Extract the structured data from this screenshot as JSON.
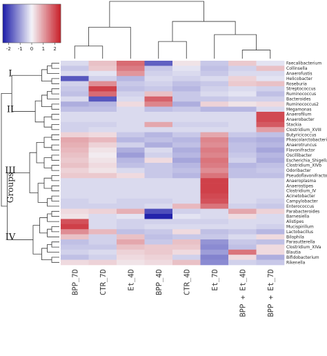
{
  "chart_data": {
    "type": "heatmap",
    "title": "",
    "groups_label": "Groups",
    "columns": [
      "BPP_7D",
      "CTR_7D",
      "Et_4D",
      "BPP_4D",
      "CTR_4D",
      "Et_7D",
      "BPP + Et_4D",
      "BPP + Et_7D"
    ],
    "rows": [
      "Faecalibacterium",
      "Collinsella",
      "Anaerofustis",
      "Helicobacter",
      "Roseburia",
      "Streptococcus",
      "Ruminococcus",
      "Bacteroides",
      "Ruminococcus2",
      "Megamonas",
      "Anaerofilum",
      "Anaerobacter",
      "Stackia",
      "Clostridium_XVIII",
      "Butyricicoccus",
      "Phascolarctobacterium",
      "Anaerotruncus",
      "Flavonifractor",
      "Oscillibacter",
      "Escherichia_Shigella",
      "Clostridium_XIVb",
      "Odoribacter",
      "Pseudoflavonifractor",
      "Anaeroplasma",
      "Anaerostipes",
      "Clostridium_IV",
      "Acinetobacter",
      "Campylobacter",
      "Enterococcus",
      "Parabacteroides",
      "Barnesiella",
      "Alistipes",
      "Mucispirillum",
      "Lactobacillus",
      "Bilophila",
      "Parasutterella",
      "Clostridium_XIVa",
      "Blautia",
      "Bifidobacterium",
      "Rikenella"
    ],
    "values": [
      [
        -0.3,
        0.6,
        1.6,
        -1.7,
        0.2,
        -0.5,
        0.5,
        -0.2
      ],
      [
        -0.5,
        0.5,
        1.4,
        -0.5,
        -0.2,
        -0.6,
        -0.4,
        0.6
      ],
      [
        -0.3,
        -0.2,
        1.1,
        -0.4,
        -0.3,
        -0.5,
        -0.3,
        -0.3
      ],
      [
        -1.8,
        -0.4,
        -0.7,
        -0.3,
        -0.4,
        -0.3,
        0.4,
        -0.2
      ],
      [
        -0.4,
        1.2,
        -0.5,
        -0.4,
        -0.6,
        -0.5,
        0.5,
        0.6
      ],
      [
        -0.5,
        2.1,
        -0.6,
        -0.5,
        -0.7,
        -0.4,
        -0.3,
        -0.4
      ],
      [
        -0.6,
        1.6,
        -0.4,
        0.6,
        -0.5,
        -0.3,
        -0.2,
        -0.6
      ],
      [
        -0.3,
        -1.8,
        -0.3,
        1.7,
        -0.5,
        -0.5,
        -0.4,
        -0.4
      ],
      [
        -0.8,
        -0.7,
        0.3,
        1.3,
        -0.8,
        0.4,
        0.2,
        0.3
      ],
      [
        -0.6,
        -0.6,
        -0.3,
        -0.6,
        -0.5,
        -0.7,
        -0.7,
        -0.3
      ],
      [
        -0.3,
        -0.3,
        -0.3,
        -0.3,
        -0.3,
        -0.3,
        -0.3,
        2.0
      ],
      [
        -0.3,
        -0.3,
        -0.3,
        -0.3,
        -0.3,
        -0.3,
        -0.3,
        2.0
      ],
      [
        -0.4,
        -0.4,
        -0.3,
        0.9,
        -0.4,
        -0.4,
        -0.3,
        1.8
      ],
      [
        -0.4,
        -0.3,
        -0.3,
        -0.3,
        -0.3,
        -0.3,
        -0.3,
        1.0
      ],
      [
        0.4,
        0.3,
        -0.5,
        -0.7,
        -0.5,
        0.9,
        -0.5,
        -0.6
      ],
      [
        0.9,
        0.7,
        -0.7,
        -0.6,
        -0.7,
        1.3,
        -0.7,
        -0.8
      ],
      [
        0.8,
        0.4,
        -0.4,
        -0.8,
        -0.6,
        1.2,
        -0.6,
        -0.7
      ],
      [
        0.7,
        0.2,
        -0.8,
        -0.3,
        -0.8,
        1.4,
        -0.6,
        -0.9
      ],
      [
        0.6,
        0.1,
        -1.0,
        -0.4,
        -0.7,
        1.3,
        -0.5,
        -0.7
      ],
      [
        0.5,
        0.2,
        -0.7,
        0.3,
        -0.9,
        1.5,
        -0.4,
        -0.8
      ],
      [
        0.6,
        0.3,
        -0.6,
        -0.5,
        -0.7,
        1.4,
        -0.7,
        -0.6
      ],
      [
        0.4,
        0.2,
        -0.3,
        -0.5,
        -0.6,
        1.2,
        -0.6,
        -0.5
      ],
      [
        0.5,
        0.5,
        0.3,
        -0.5,
        -0.7,
        1.5,
        -0.6,
        -0.6
      ],
      [
        -0.3,
        -0.3,
        -0.3,
        -0.3,
        -0.3,
        2.1,
        -0.3,
        -0.3
      ],
      [
        -0.3,
        -0.3,
        -0.3,
        -0.3,
        -0.3,
        2.1,
        -0.3,
        -0.3
      ],
      [
        -0.3,
        -0.3,
        -0.3,
        -0.3,
        -0.3,
        2.1,
        -0.3,
        -0.3
      ],
      [
        -0.3,
        -0.3,
        -0.3,
        -0.3,
        -0.3,
        2.0,
        -0.3,
        -0.3
      ],
      [
        -0.4,
        -0.3,
        -0.4,
        -0.4,
        -0.3,
        1.9,
        -0.3,
        -0.4
      ],
      [
        -0.4,
        -0.4,
        -0.4,
        -0.3,
        0.7,
        1.5,
        -0.4,
        -0.5
      ],
      [
        0.3,
        0.4,
        0.8,
        -1.9,
        -0.4,
        -0.3,
        0.9,
        0.4
      ],
      [
        0.2,
        -0.3,
        -0.2,
        -2.4,
        -0.2,
        -0.3,
        0.3,
        -0.3
      ],
      [
        1.9,
        -0.3,
        -0.4,
        -0.4,
        -0.4,
        -0.4,
        -0.3,
        -0.3
      ],
      [
        2.1,
        -0.3,
        -0.4,
        -0.3,
        -0.3,
        -0.3,
        -0.3,
        -0.4
      ],
      [
        1.2,
        0.7,
        -0.6,
        -0.5,
        0.3,
        -0.6,
        -0.5,
        -0.7
      ],
      [
        0.6,
        -0.4,
        0.6,
        -0.6,
        -0.5,
        -0.5,
        -0.3,
        0.3
      ],
      [
        -0.6,
        -0.4,
        0.9,
        -0.5,
        0.6,
        -1.1,
        -0.5,
        -0.6
      ],
      [
        -0.5,
        -0.5,
        0.6,
        0.5,
        0.5,
        -1.2,
        -0.6,
        0.3
      ],
      [
        -0.4,
        -0.3,
        0.4,
        0.5,
        0.3,
        -1.0,
        1.5,
        0.3
      ],
      [
        -0.6,
        -0.4,
        0.3,
        0.4,
        -0.4,
        -1.3,
        0.3,
        -0.8
      ],
      [
        0.3,
        0.4,
        0.2,
        0.3,
        0.6,
        -1.2,
        -0.4,
        -0.5
      ]
    ],
    "groups": [
      {
        "label": "I",
        "first_row": 0,
        "last_row": 4
      },
      {
        "label": "II",
        "first_row": 5,
        "last_row": 13
      },
      {
        "label": "III",
        "first_row": 14,
        "last_row": 28
      },
      {
        "label": "IV",
        "first_row": 29,
        "last_row": 39
      }
    ],
    "color_key": {
      "ticks": [
        -2,
        -1,
        0,
        1,
        2
      ],
      "range": [
        -2.5,
        2.5
      ],
      "low_color": "#1a1aa8",
      "mid_color": "#f4f4f8",
      "high_color": "#c81e28"
    }
  }
}
